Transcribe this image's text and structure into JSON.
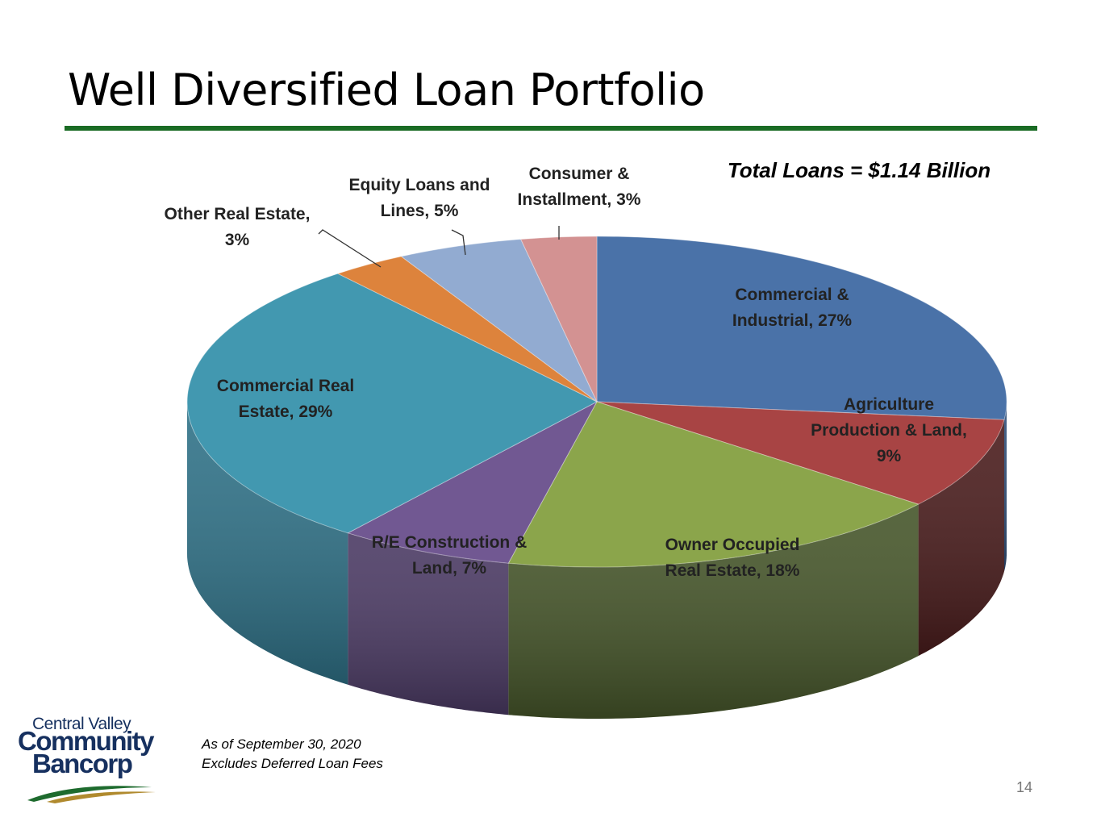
{
  "title": "Well Diversified Loan Portfolio",
  "total_label": "Total Loans = $1.14 Billion",
  "footnotes": [
    "As of September 30, 2020",
    "Excludes Deferred Loan Fees"
  ],
  "page_number": "14",
  "logo": {
    "line1": "Central Valley",
    "line2": "Community",
    "line3": "Bancorp",
    "colors": {
      "text": "#16305f",
      "swoosh_green": "#1e6b2e",
      "swoosh_gold": "#b08a2e"
    }
  },
  "colors": {
    "rule": "#1a6b24"
  },
  "chart_data": {
    "type": "pie",
    "style": "3d",
    "title": "",
    "slices": [
      {
        "label_lines": [
          "Commercial &",
          "Industrial, 27%"
        ],
        "value": 27,
        "color": "#4a72a8",
        "side": "#2f4f7a"
      },
      {
        "label_lines": [
          "Agriculture",
          "Production & Land,",
          "9%"
        ],
        "value": 9,
        "color": "#a84444",
        "side": "#4a1c1c"
      },
      {
        "label_lines": [
          "Owner Occupied",
          "Real Estate, 18%"
        ],
        "value": 18,
        "color": "#8ba54b",
        "side": "#46562a"
      },
      {
        "label_lines": [
          "R/E Construction &",
          "Land, 7%"
        ],
        "value": 7,
        "color": "#715892",
        "side": "#4b3a64"
      },
      {
        "label_lines": [
          "Commercial Real",
          "Estate, 29%"
        ],
        "value": 29,
        "color": "#4298b0",
        "side": "#2f7288"
      },
      {
        "label_lines": [
          "Other Real Estate,",
          "3%"
        ],
        "value": 3,
        "color": "#dd833c",
        "side": "#a8602a"
      },
      {
        "label_lines": [
          "Equity Loans and",
          "Lines, 5%"
        ],
        "value": 5,
        "color": "#92abd1",
        "side": "#6f86a8"
      },
      {
        "label_lines": [
          "Consumer &",
          "Installment, 3%"
        ],
        "value": 3,
        "color": "#d39292",
        "side": "#a56e6e"
      }
    ]
  }
}
